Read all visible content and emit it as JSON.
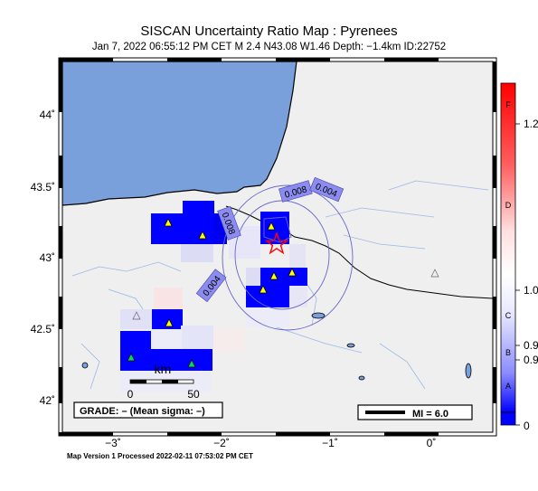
{
  "title": "SISCAN Uncertainty Ratio Map : Pyrenees",
  "subtitle": "Jan  7, 2022 06:55:12 PM CET   M 2.4   N43.08 W1.46   Depth: −1.4km   ID:22752",
  "footer": "Map Version 1 Processed 2022-02-11 07:53:02 PM CET",
  "map": {
    "lon_ticks": [
      "−3˚",
      "−2˚",
      "−1˚",
      "0˚"
    ],
    "lat_ticks": [
      "44˚",
      "43.5˚",
      "43˚",
      "42.5˚",
      "42˚"
    ],
    "contour_labels": [
      "0.008",
      "0.004",
      "0.008",
      "0.004"
    ],
    "scale_bar": {
      "unit": "km",
      "start": "0",
      "end": "50"
    },
    "grade_label": "GRADE: – (Mean sigma: –)",
    "mi_label": "MI = 6.0",
    "ocean_color": "#7aa0dc",
    "land_color": "#efefef"
  },
  "colorbar": {
    "grades": [
      "F",
      "D",
      "C",
      "B",
      "A"
    ],
    "values": [
      "1.2",
      "1.0",
      "0.9",
      "0.9",
      "0"
    ]
  }
}
